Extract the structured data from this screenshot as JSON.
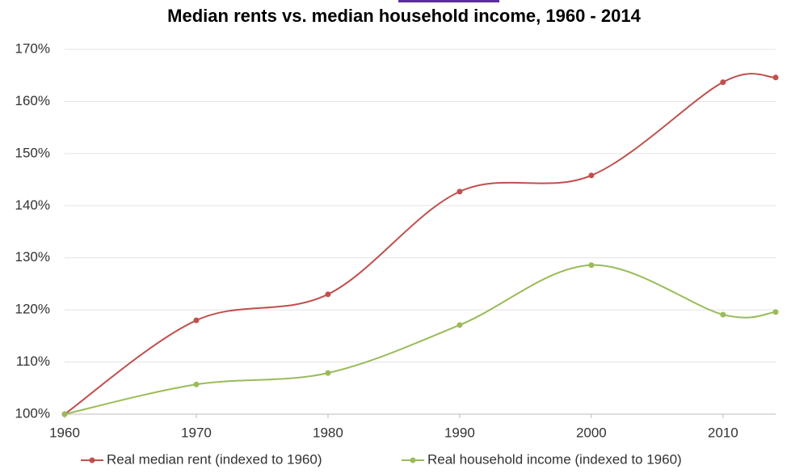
{
  "chart_data": {
    "type": "line",
    "title": "Median rents vs. median household income, 1960 - 2014",
    "x": [
      1960,
      1970,
      1980,
      1990,
      2000,
      2010,
      2014
    ],
    "series": [
      {
        "name": "Real median rent (indexed to 1960)",
        "color": "#c0504d",
        "values": [
          100,
          118.0,
          123.0,
          142.7,
          145.8,
          163.7,
          164.6
        ]
      },
      {
        "name": "Real household income (indexed to 1960)",
        "color": "#9bbb59",
        "values": [
          100,
          105.7,
          107.9,
          117.1,
          128.6,
          119.1,
          119.6
        ]
      }
    ],
    "xlim": [
      1960,
      2014
    ],
    "xticks": [
      1960,
      1970,
      1980,
      1990,
      2000,
      2010
    ],
    "ylim": [
      100,
      170
    ],
    "yticks": [
      {
        "value": 100,
        "label": "100%"
      },
      {
        "value": 110,
        "label": "110%"
      },
      {
        "value": 120,
        "label": "120%"
      },
      {
        "value": 130,
        "label": "130%"
      },
      {
        "value": 140,
        "label": "140%"
      },
      {
        "value": 150,
        "label": "150%"
      },
      {
        "value": 160,
        "label": "160%"
      },
      {
        "value": 170,
        "label": "170%"
      }
    ],
    "grid": true,
    "smooth": true,
    "legend": "bottom"
  }
}
